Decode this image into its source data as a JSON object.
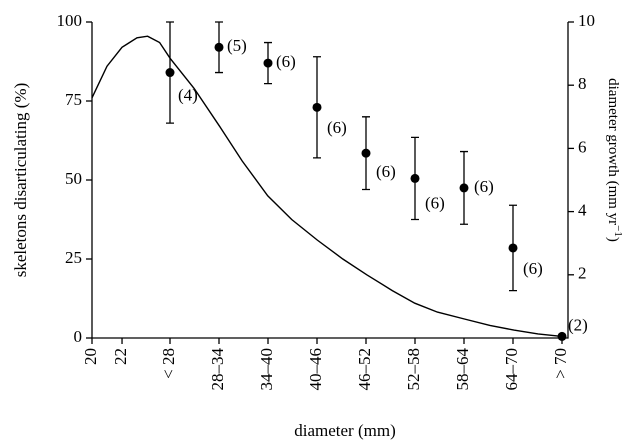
{
  "chart_data": {
    "type": "scatter",
    "xlabel": "diameter (mm)",
    "ylabel": "skeletons disarticulating (%)",
    "y2label": "diameter growth (mm yr",
    "y2label_sup": "−1",
    "y2label_end": ")",
    "categories": [
      "< 28",
      "28–34",
      "34–40",
      "40–46",
      "46–52",
      "52–58",
      "58–64",
      "64–70",
      "> 70"
    ],
    "values": [
      84,
      92,
      87,
      73,
      58.5,
      50.5,
      47.5,
      28.5,
      0.5
    ],
    "errors": [
      16,
      8,
      6.5,
      16,
      11.5,
      13,
      11.5,
      13.5,
      0
    ],
    "n_labels": [
      "(4)",
      "(5)",
      "(6)",
      "(6)",
      "(6)",
      "(6)",
      "(6)",
      "(6)",
      "(2)"
    ],
    "color": "#000000",
    "ylim": [
      0,
      100
    ],
    "yticks": [
      0,
      25,
      50,
      75,
      100
    ],
    "xlim": [
      20,
      51.7
    ],
    "xticks": [
      20,
      22
    ],
    "y2lim": [
      0,
      10
    ],
    "y2ticks": [
      2,
      4,
      6,
      8,
      10
    ],
    "curve": {
      "type": "line",
      "axis": "y2",
      "color": "#000000",
      "x": [
        20,
        21,
        22,
        23,
        23.7,
        24.5,
        25.2,
        26.8,
        28.5,
        30,
        31.7,
        33.3,
        35,
        36.7,
        38.3,
        40,
        41.5,
        43,
        44.8,
        46.5,
        48.1,
        49.7,
        51.3
      ],
      "values": [
        7.6,
        8.6,
        9.2,
        9.5,
        9.55,
        9.35,
        8.85,
        7.9,
        6.7,
        5.6,
        4.5,
        3.75,
        3.1,
        2.5,
        2.0,
        1.5,
        1.1,
        0.82,
        0.6,
        0.4,
        0.25,
        0.13,
        0.05
      ]
    }
  }
}
